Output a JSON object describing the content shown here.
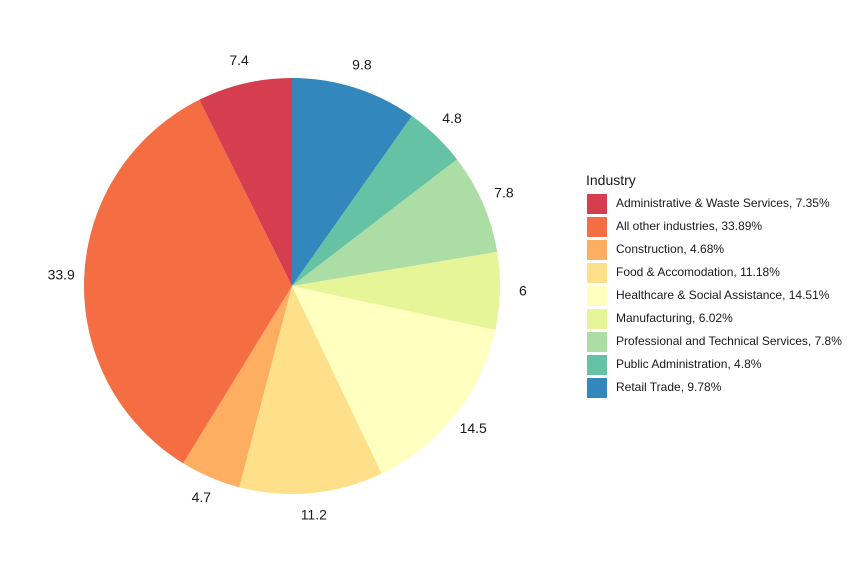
{
  "chart_data": {
    "type": "pie",
    "title": "",
    "legend": {
      "title": "Industry",
      "position": "right"
    },
    "slices": [
      {
        "name": "Administrative & Waste Services, 7.35%",
        "value": 7.35,
        "label": "7.4",
        "color": "#d53e4f"
      },
      {
        "name": "All other industries, 33.89%",
        "value": 33.89,
        "label": "33.9",
        "color": "#f46d43"
      },
      {
        "name": "Construction, 4.68%",
        "value": 4.68,
        "label": "4.7",
        "color": "#fdae61"
      },
      {
        "name": "Food & Accomodation, 11.18%",
        "value": 11.18,
        "label": "11.2",
        "color": "#fee08b"
      },
      {
        "name": "Healthcare & Social Assistance, 14.51%",
        "value": 14.51,
        "label": "14.5",
        "color": "#ffffbf"
      },
      {
        "name": "Manufacturing, 6.02%",
        "value": 6.02,
        "label": "6",
        "color": "#e6f598"
      },
      {
        "name": "Professional and Technical Services, 7.8%",
        "value": 7.8,
        "label": "7.8",
        "color": "#abdda4"
      },
      {
        "name": "Public Administration, 4.8%",
        "value": 4.8,
        "label": "4.8",
        "color": "#66c2a5"
      },
      {
        "name": "Retail Trade, 9.78%",
        "value": 9.78,
        "label": "9.8",
        "color": "#3288bd"
      }
    ],
    "draw_order": [
      8,
      7,
      6,
      5,
      4,
      3,
      2,
      1,
      0
    ],
    "direction": "clockwise",
    "start_angle": "12 o'clock"
  }
}
